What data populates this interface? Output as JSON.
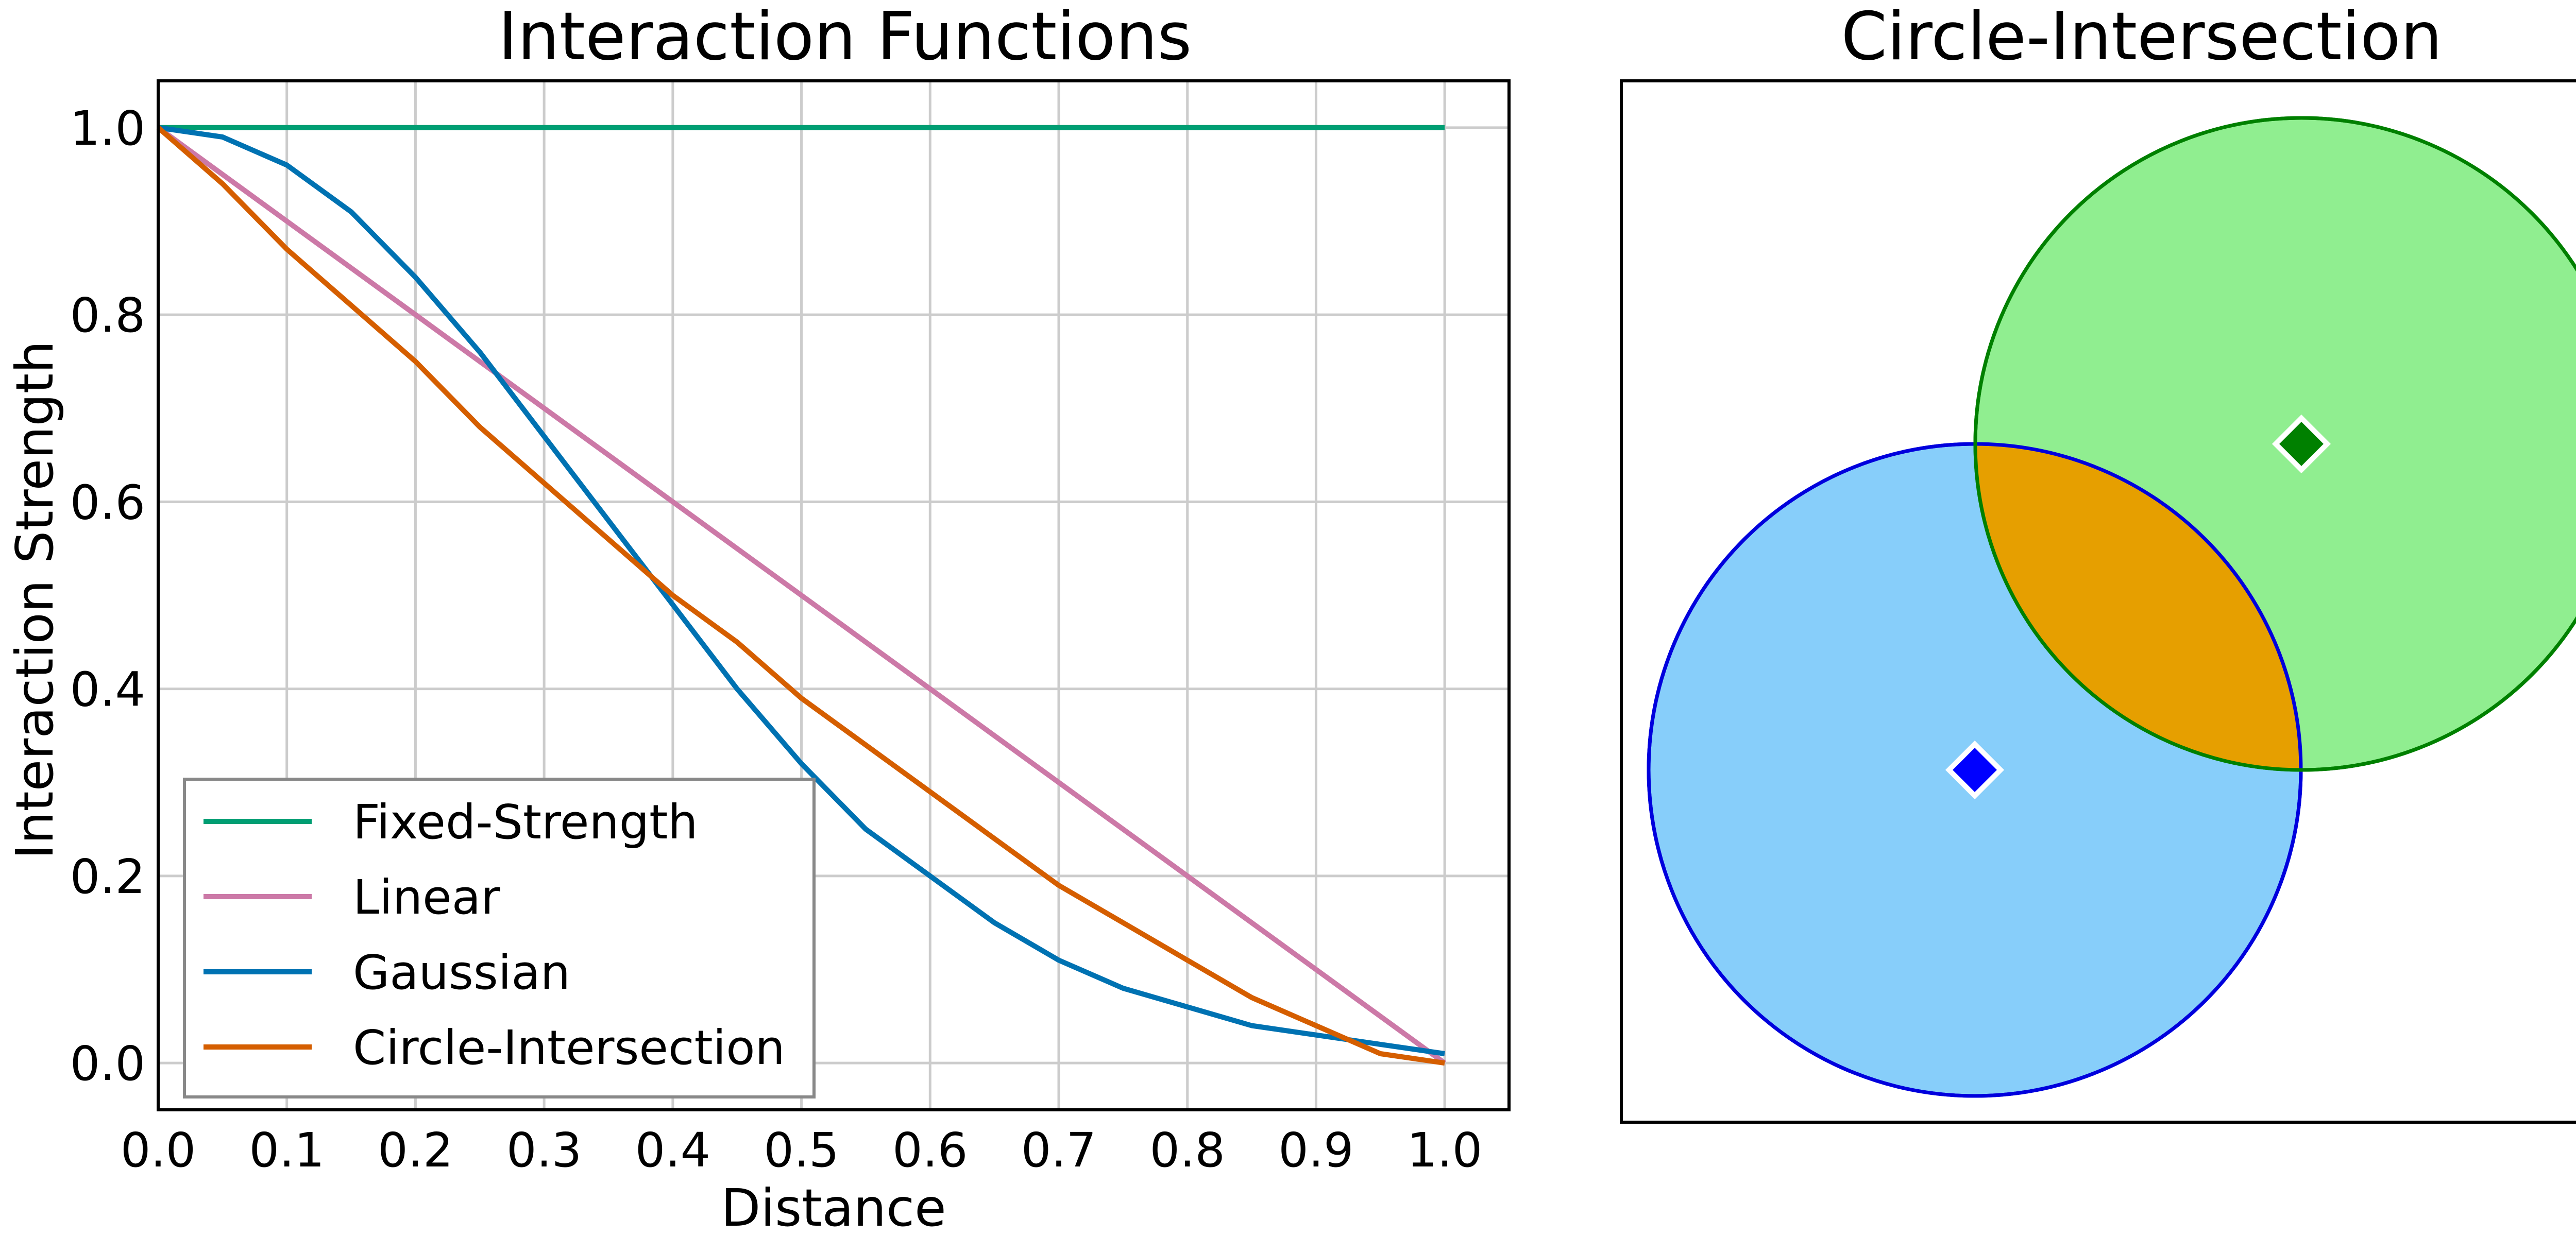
{
  "chart_data": [
    {
      "type": "line",
      "title": "Interaction Functions",
      "xlabel": "Distance",
      "ylabel": "Interaction Strength",
      "xlim": [
        0.0,
        1.05
      ],
      "ylim": [
        -0.05,
        1.05
      ],
      "grid": true,
      "legend_position": "lower-left",
      "xticks": [
        "0.0",
        "0.1",
        "0.2",
        "0.3",
        "0.4",
        "0.5",
        "0.6",
        "0.7",
        "0.8",
        "0.9",
        "1.0"
      ],
      "yticks": [
        "0.0",
        "0.2",
        "0.4",
        "0.6",
        "0.8",
        "1.0"
      ],
      "series": [
        {
          "name": "Fixed-Strength",
          "color": "#009E73",
          "x": [
            0.0,
            0.1,
            0.2,
            0.3,
            0.4,
            0.5,
            0.6,
            0.7,
            0.8,
            0.9,
            1.0
          ],
          "y": [
            1.0,
            1.0,
            1.0,
            1.0,
            1.0,
            1.0,
            1.0,
            1.0,
            1.0,
            1.0,
            1.0
          ]
        },
        {
          "name": "Linear",
          "color": "#CC79A7",
          "x": [
            0.0,
            0.1,
            0.2,
            0.3,
            0.4,
            0.5,
            0.6,
            0.7,
            0.8,
            0.9,
            1.0
          ],
          "y": [
            1.0,
            0.9,
            0.8,
            0.7,
            0.6,
            0.5,
            0.4,
            0.3,
            0.2,
            0.1,
            0.0
          ]
        },
        {
          "name": "Gaussian",
          "color": "#0072B2",
          "x": [
            0.0,
            0.05,
            0.1,
            0.15,
            0.2,
            0.25,
            0.3,
            0.35,
            0.4,
            0.45,
            0.5,
            0.55,
            0.6,
            0.65,
            0.7,
            0.75,
            0.8,
            0.85,
            0.9,
            0.95,
            1.0
          ],
          "y": [
            1.0,
            0.99,
            0.96,
            0.91,
            0.84,
            0.76,
            0.67,
            0.58,
            0.49,
            0.4,
            0.32,
            0.25,
            0.2,
            0.15,
            0.11,
            0.08,
            0.06,
            0.04,
            0.03,
            0.02,
            0.01
          ]
        },
        {
          "name": "Circle-Intersection",
          "color": "#D55E00",
          "x": [
            0.0,
            0.05,
            0.1,
            0.15,
            0.2,
            0.25,
            0.3,
            0.35,
            0.4,
            0.45,
            0.5,
            0.55,
            0.6,
            0.65,
            0.7,
            0.75,
            0.8,
            0.85,
            0.9,
            0.95,
            1.0
          ],
          "y": [
            1.0,
            0.94,
            0.87,
            0.81,
            0.75,
            0.68,
            0.62,
            0.56,
            0.5,
            0.45,
            0.39,
            0.34,
            0.29,
            0.24,
            0.19,
            0.15,
            0.11,
            0.07,
            0.04,
            0.01,
            0.0
          ]
        }
      ]
    },
    {
      "type": "diagram",
      "title": "Circle-Intersection",
      "grid": false,
      "circles": [
        {
          "role": "blue circle",
          "fill": "#87CEFA",
          "stroke": "#0000DD",
          "marker": "#0000FF"
        },
        {
          "role": "green circle",
          "fill": "#90EE90",
          "stroke": "#008000",
          "marker": "#008000"
        }
      ],
      "intersection_fill": "#E69F00"
    }
  ]
}
